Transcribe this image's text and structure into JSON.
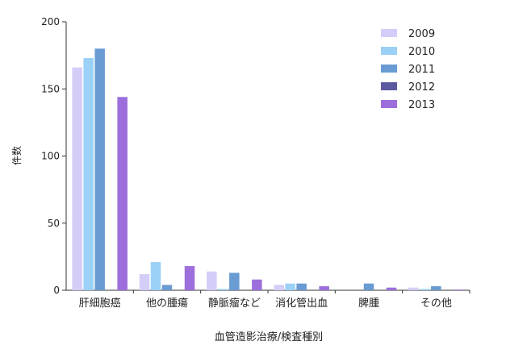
{
  "chart_data": {
    "type": "bar",
    "title": "",
    "xlabel": "血管造影治療/検査種別",
    "ylabel": "件数",
    "ylim": [
      0,
      200
    ],
    "yticks": [
      0,
      50,
      100,
      150,
      200
    ],
    "grid": false,
    "legend_position": "top-right",
    "categories": [
      "肝細胞癌",
      "他の腫瘍",
      "静脈瘤など",
      "消化管出血",
      "脾腫",
      "その他"
    ],
    "series": [
      {
        "name": "2009",
        "color": "#d4cdf7",
        "values": [
          166,
          12,
          14,
          4,
          0,
          2
        ]
      },
      {
        "name": "2010",
        "color": "#9bd1f7",
        "values": [
          173,
          21,
          1,
          5,
          0,
          1
        ]
      },
      {
        "name": "2011",
        "color": "#6a9bd3",
        "values": [
          180,
          4,
          13,
          5,
          5,
          3
        ]
      },
      {
        "name": "2012",
        "color": "#5b5a9e",
        "values": [
          0,
          0,
          0,
          0,
          0,
          0
        ]
      },
      {
        "name": "2013",
        "color": "#9d6fdc",
        "values": [
          144,
          18,
          8,
          3,
          2,
          0.5
        ]
      }
    ]
  }
}
